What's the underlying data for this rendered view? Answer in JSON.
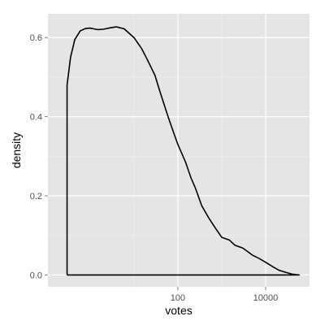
{
  "chart_data": {
    "type": "line",
    "xlabel": "votes",
    "ylabel": "density",
    "x_scale": "log10",
    "xlim": [
      0.11,
      100000
    ],
    "ylim": [
      -0.03,
      0.66
    ],
    "x_ticks": [
      {
        "value": 100,
        "label": "100"
      },
      {
        "value": 10000,
        "label": "10000"
      }
    ],
    "y_ticks": [
      {
        "value": 0.0,
        "label": "0.0"
      },
      {
        "value": 0.2,
        "label": "0.2"
      },
      {
        "value": 0.4,
        "label": "0.4"
      },
      {
        "value": 0.6,
        "label": "0.6"
      }
    ],
    "grid": true,
    "series": [
      {
        "x": [
          0.3,
          0.3,
          0.36,
          0.45,
          0.6,
          0.8,
          1,
          1.5,
          2,
          3,
          4,
          6,
          10,
          15,
          20,
          30,
          40,
          60,
          80,
          100,
          150,
          200,
          250,
          350,
          500,
          700,
          1000,
          1500,
          2000,
          3000,
          4000,
          5000,
          7000,
          10000,
          15000,
          20000,
          30000,
          40000,
          58000,
          58000,
          0.3
        ],
        "y": [
          0,
          0.48,
          0.55,
          0.595,
          0.617,
          0.623,
          0.624,
          0.62,
          0.621,
          0.625,
          0.627,
          0.622,
          0.6,
          0.572,
          0.545,
          0.505,
          0.46,
          0.4,
          0.36,
          0.33,
          0.285,
          0.245,
          0.22,
          0.175,
          0.145,
          0.12,
          0.095,
          0.088,
          0.075,
          0.068,
          0.058,
          0.05,
          0.042,
          0.032,
          0.02,
          0.012,
          0.006,
          0.002,
          0.0,
          0.0,
          0.0
        ]
      }
    ]
  }
}
